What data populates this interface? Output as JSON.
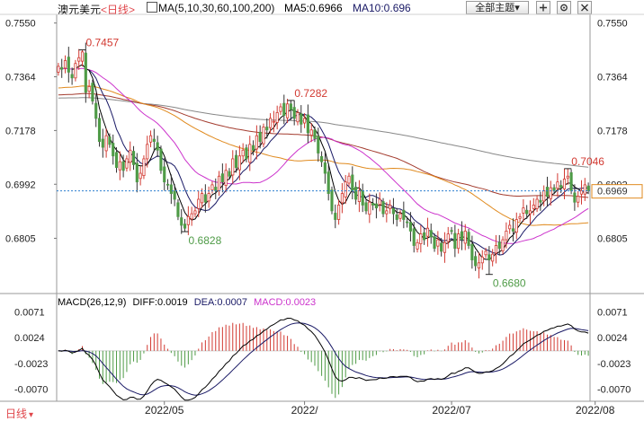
{
  "header": {
    "instrument": "澳元美元",
    "period_label": "<日线>",
    "ma_label": "MA(5,10,30,60,100,200)",
    "ma5_label": "MA5:0.6966",
    "ma10_label": "MA10:0.696",
    "theme_button": "全部主题",
    "theme_caret": "▾"
  },
  "footer": {
    "period_label": "日线",
    "caret": "▾"
  },
  "colors": {
    "up": "#d23a32",
    "down": "#4f9b47",
    "ma5": "#000000",
    "ma10": "#1a1a66",
    "ma30": "#cc33cc",
    "ma60": "#e08a1e",
    "ma100": "#a33b2e",
    "ma200": "#888888",
    "diff": "#000000",
    "dea": "#1a1a66",
    "macd_label": "#cc33cc",
    "current": "#e08a1e",
    "current_line": "#2d7fcf"
  },
  "chart_data": [
    {
      "type": "candlestick",
      "title": "",
      "y_ticks": [
        "0.7550",
        "0.7364",
        "0.7178",
        "0.6992",
        "0.6805"
      ],
      "ylim": [
        0.662,
        0.758
      ],
      "x_tick_labels": [
        {
          "label": "2022/05",
          "index": 31
        },
        {
          "label": "2022/",
          "index": 72
        },
        {
          "label": "2022/07",
          "index": 115
        },
        {
          "label": "2022/08",
          "index": 157
        }
      ],
      "current_price": "0.6969",
      "annotations": [
        {
          "text": "0.7457",
          "index": 7,
          "value": 0.7457
        },
        {
          "text": "0.7282",
          "index": 68,
          "value": 0.7282
        },
        {
          "text": "0.6828",
          "index": 37,
          "value": 0.6828
        },
        {
          "text": "0.6680",
          "index": 126,
          "value": 0.668
        },
        {
          "text": "0.7046",
          "index": 149,
          "value": 0.7046
        }
      ],
      "close": [
        0.74,
        0.739,
        0.742,
        0.738,
        0.736,
        0.741,
        0.743,
        0.745,
        0.731,
        0.733,
        0.728,
        0.722,
        0.714,
        0.712,
        0.716,
        0.713,
        0.709,
        0.705,
        0.707,
        0.704,
        0.708,
        0.711,
        0.706,
        0.7,
        0.703,
        0.708,
        0.713,
        0.716,
        0.714,
        0.711,
        0.704,
        0.7,
        0.699,
        0.696,
        0.694,
        0.688,
        0.685,
        0.684,
        0.688,
        0.689,
        0.69,
        0.694,
        0.696,
        0.693,
        0.696,
        0.699,
        0.697,
        0.702,
        0.7,
        0.704,
        0.702,
        0.708,
        0.705,
        0.709,
        0.711,
        0.708,
        0.713,
        0.711,
        0.716,
        0.714,
        0.719,
        0.718,
        0.722,
        0.721,
        0.724,
        0.726,
        0.723,
        0.727,
        0.725,
        0.722,
        0.724,
        0.72,
        0.722,
        0.717,
        0.718,
        0.715,
        0.71,
        0.707,
        0.703,
        0.696,
        0.69,
        0.687,
        0.692,
        0.696,
        0.7,
        0.702,
        0.697,
        0.694,
        0.697,
        0.692,
        0.69,
        0.693,
        0.692,
        0.691,
        0.694,
        0.689,
        0.69,
        0.692,
        0.689,
        0.687,
        0.689,
        0.687,
        0.686,
        0.683,
        0.678,
        0.679,
        0.682,
        0.68,
        0.684,
        0.681,
        0.677,
        0.68,
        0.676,
        0.679,
        0.682,
        0.683,
        0.677,
        0.682,
        0.68,
        0.683,
        0.678,
        0.673,
        0.671,
        0.672,
        0.674,
        0.676,
        0.673,
        0.675,
        0.678,
        0.677,
        0.68,
        0.683,
        0.685,
        0.683,
        0.687,
        0.688,
        0.691,
        0.689,
        0.69,
        0.692,
        0.694,
        0.693,
        0.697,
        0.695,
        0.698,
        0.697,
        0.7,
        0.698,
        0.701,
        0.702,
        0.697,
        0.693,
        0.695,
        0.697,
        0.699,
        0.697
      ]
    },
    {
      "type": "macd",
      "title": "MACD(26,12,9)",
      "params": [
        26,
        12,
        9
      ],
      "diff_label": "DIFF:0.0019",
      "dea_label": "DEA:0.0007",
      "macd_label": "MACD:0.0023",
      "y_ticks": [
        "0.0071",
        "0.0024",
        "-0.0023",
        "-0.0070"
      ],
      "ylim": [
        -0.0092,
        0.0098
      ]
    }
  ]
}
